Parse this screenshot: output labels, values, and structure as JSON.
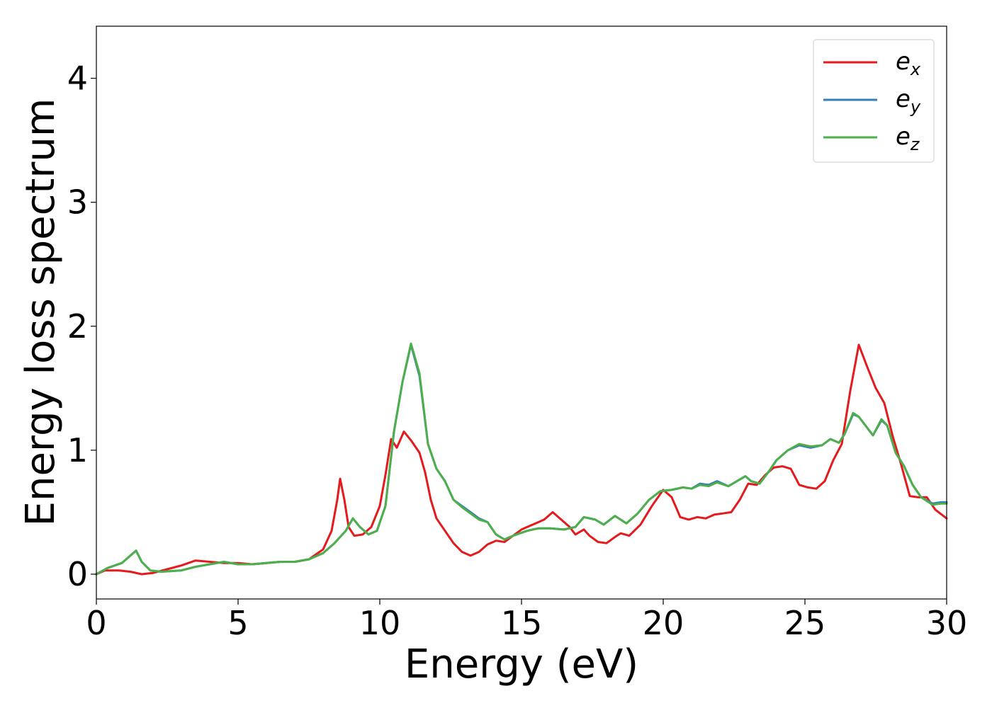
{
  "chart_data": {
    "type": "line",
    "xlabel": "Energy (eV)",
    "ylabel": "Energy loss spectrum",
    "xlim": [
      0,
      30
    ],
    "ylim": [
      -0.2,
      4.42
    ],
    "xticks": [
      "0",
      "5",
      "10",
      "15",
      "20",
      "25",
      "30"
    ],
    "yticks": [
      "0",
      "1",
      "2",
      "3",
      "4"
    ],
    "grid": false,
    "legend_position": "top-right",
    "series": [
      {
        "name": "e",
        "subscript": "x",
        "color": "#e41a1c",
        "points": [
          [
            0,
            0
          ],
          [
            0.3,
            0.03
          ],
          [
            0.8,
            0.03
          ],
          [
            1.2,
            0.02
          ],
          [
            1.6,
            0.0
          ],
          [
            2.0,
            0.01
          ],
          [
            2.5,
            0.04
          ],
          [
            3.0,
            0.07
          ],
          [
            3.5,
            0.11
          ],
          [
            4.0,
            0.1
          ],
          [
            4.5,
            0.09
          ],
          [
            5.0,
            0.09
          ],
          [
            5.5,
            0.08
          ],
          [
            6.0,
            0.09
          ],
          [
            6.5,
            0.1
          ],
          [
            7.0,
            0.1
          ],
          [
            7.5,
            0.12
          ],
          [
            8.0,
            0.2
          ],
          [
            8.3,
            0.35
          ],
          [
            8.5,
            0.6
          ],
          [
            8.6,
            0.77
          ],
          [
            8.75,
            0.6
          ],
          [
            8.9,
            0.38
          ],
          [
            9.1,
            0.31
          ],
          [
            9.4,
            0.32
          ],
          [
            9.7,
            0.38
          ],
          [
            10.0,
            0.55
          ],
          [
            10.2,
            0.8
          ],
          [
            10.4,
            1.09
          ],
          [
            10.6,
            1.02
          ],
          [
            10.85,
            1.15
          ],
          [
            11.1,
            1.08
          ],
          [
            11.4,
            0.98
          ],
          [
            11.6,
            0.82
          ],
          [
            11.8,
            0.6
          ],
          [
            12.0,
            0.45
          ],
          [
            12.3,
            0.35
          ],
          [
            12.6,
            0.25
          ],
          [
            12.9,
            0.18
          ],
          [
            13.2,
            0.15
          ],
          [
            13.5,
            0.18
          ],
          [
            13.8,
            0.24
          ],
          [
            14.1,
            0.27
          ],
          [
            14.4,
            0.26
          ],
          [
            14.7,
            0.31
          ],
          [
            15.0,
            0.36
          ],
          [
            15.4,
            0.4
          ],
          [
            15.8,
            0.44
          ],
          [
            16.1,
            0.5
          ],
          [
            16.4,
            0.44
          ],
          [
            16.7,
            0.38
          ],
          [
            16.9,
            0.32
          ],
          [
            17.2,
            0.36
          ],
          [
            17.4,
            0.31
          ],
          [
            17.7,
            0.26
          ],
          [
            18.0,
            0.25
          ],
          [
            18.3,
            0.3
          ],
          [
            18.5,
            0.33
          ],
          [
            18.8,
            0.31
          ],
          [
            19.2,
            0.4
          ],
          [
            19.6,
            0.55
          ],
          [
            20.0,
            0.68
          ],
          [
            20.3,
            0.62
          ],
          [
            20.6,
            0.46
          ],
          [
            20.9,
            0.44
          ],
          [
            21.2,
            0.46
          ],
          [
            21.5,
            0.45
          ],
          [
            21.8,
            0.48
          ],
          [
            22.1,
            0.49
          ],
          [
            22.4,
            0.5
          ],
          [
            22.7,
            0.6
          ],
          [
            23.0,
            0.73
          ],
          [
            23.3,
            0.72
          ],
          [
            23.6,
            0.8
          ],
          [
            23.9,
            0.86
          ],
          [
            24.2,
            0.87
          ],
          [
            24.5,
            0.85
          ],
          [
            24.8,
            0.72
          ],
          [
            25.1,
            0.7
          ],
          [
            25.4,
            0.69
          ],
          [
            25.7,
            0.75
          ],
          [
            26.0,
            0.92
          ],
          [
            26.3,
            1.05
          ],
          [
            26.6,
            1.48
          ],
          [
            26.9,
            1.85
          ],
          [
            27.2,
            1.67
          ],
          [
            27.5,
            1.5
          ],
          [
            27.8,
            1.38
          ],
          [
            28.1,
            1.11
          ],
          [
            28.4,
            0.88
          ],
          [
            28.7,
            0.63
          ],
          [
            29.0,
            0.62
          ],
          [
            29.3,
            0.62
          ],
          [
            29.6,
            0.52
          ],
          [
            30.0,
            0.45
          ]
        ]
      },
      {
        "name": "e",
        "subscript": "y",
        "color": "#377eb8",
        "points": [
          [
            0,
            0
          ],
          [
            0.4,
            0.05
          ],
          [
            0.9,
            0.09
          ],
          [
            1.2,
            0.15
          ],
          [
            1.4,
            0.19
          ],
          [
            1.6,
            0.1
          ],
          [
            1.9,
            0.03
          ],
          [
            2.3,
            0.02
          ],
          [
            3.0,
            0.03
          ],
          [
            3.5,
            0.06
          ],
          [
            4.0,
            0.08
          ],
          [
            4.5,
            0.1
          ],
          [
            5.0,
            0.08
          ],
          [
            5.5,
            0.08
          ],
          [
            6.0,
            0.09
          ],
          [
            6.5,
            0.1
          ],
          [
            7.0,
            0.1
          ],
          [
            7.5,
            0.12
          ],
          [
            8.0,
            0.17
          ],
          [
            8.4,
            0.25
          ],
          [
            8.8,
            0.35
          ],
          [
            9.05,
            0.45
          ],
          [
            9.3,
            0.38
          ],
          [
            9.6,
            0.32
          ],
          [
            9.9,
            0.35
          ],
          [
            10.2,
            0.55
          ],
          [
            10.5,
            1.15
          ],
          [
            10.8,
            1.55
          ],
          [
            11.1,
            1.85
          ],
          [
            11.4,
            1.6
          ],
          [
            11.7,
            1.05
          ],
          [
            12.0,
            0.85
          ],
          [
            12.3,
            0.75
          ],
          [
            12.6,
            0.6
          ],
          [
            12.9,
            0.55
          ],
          [
            13.2,
            0.5
          ],
          [
            13.5,
            0.45
          ],
          [
            13.8,
            0.42
          ],
          [
            14.1,
            0.32
          ],
          [
            14.4,
            0.28
          ],
          [
            14.7,
            0.31
          ],
          [
            15.2,
            0.35
          ],
          [
            15.6,
            0.37
          ],
          [
            16.0,
            0.37
          ],
          [
            16.5,
            0.36
          ],
          [
            16.9,
            0.38
          ],
          [
            17.2,
            0.46
          ],
          [
            17.6,
            0.44
          ],
          [
            17.9,
            0.4
          ],
          [
            18.3,
            0.47
          ],
          [
            18.7,
            0.41
          ],
          [
            19.1,
            0.49
          ],
          [
            19.5,
            0.6
          ],
          [
            19.9,
            0.67
          ],
          [
            20.3,
            0.68
          ],
          [
            20.7,
            0.7
          ],
          [
            21.0,
            0.69
          ],
          [
            21.3,
            0.73
          ],
          [
            21.6,
            0.72
          ],
          [
            21.9,
            0.75
          ],
          [
            22.3,
            0.71
          ],
          [
            22.6,
            0.75
          ],
          [
            22.9,
            0.79
          ],
          [
            23.1,
            0.75
          ],
          [
            23.4,
            0.73
          ],
          [
            23.7,
            0.82
          ],
          [
            24.0,
            0.92
          ],
          [
            24.4,
            1.0
          ],
          [
            24.8,
            1.04
          ],
          [
            25.2,
            1.02
          ],
          [
            25.6,
            1.04
          ],
          [
            25.9,
            1.09
          ],
          [
            26.2,
            1.06
          ],
          [
            26.4,
            1.13
          ],
          [
            26.7,
            1.29
          ],
          [
            26.9,
            1.27
          ],
          [
            27.2,
            1.18
          ],
          [
            27.4,
            1.12
          ],
          [
            27.7,
            1.24
          ],
          [
            27.9,
            1.2
          ],
          [
            28.2,
            0.98
          ],
          [
            28.5,
            0.87
          ],
          [
            28.8,
            0.72
          ],
          [
            29.1,
            0.62
          ],
          [
            29.5,
            0.57
          ],
          [
            29.8,
            0.58
          ],
          [
            30.0,
            0.58
          ]
        ]
      },
      {
        "name": "e",
        "subscript": "z",
        "color": "#4daf4a",
        "points": [
          [
            0,
            0
          ],
          [
            0.4,
            0.05
          ],
          [
            0.9,
            0.09
          ],
          [
            1.2,
            0.15
          ],
          [
            1.4,
            0.19
          ],
          [
            1.6,
            0.1
          ],
          [
            1.9,
            0.03
          ],
          [
            2.3,
            0.02
          ],
          [
            3.0,
            0.03
          ],
          [
            3.5,
            0.06
          ],
          [
            4.0,
            0.08
          ],
          [
            4.5,
            0.1
          ],
          [
            5.0,
            0.08
          ],
          [
            5.5,
            0.08
          ],
          [
            6.0,
            0.09
          ],
          [
            6.5,
            0.1
          ],
          [
            7.0,
            0.1
          ],
          [
            7.5,
            0.12
          ],
          [
            8.0,
            0.17
          ],
          [
            8.4,
            0.25
          ],
          [
            8.8,
            0.35
          ],
          [
            9.05,
            0.45
          ],
          [
            9.3,
            0.38
          ],
          [
            9.6,
            0.32
          ],
          [
            9.9,
            0.35
          ],
          [
            10.2,
            0.55
          ],
          [
            10.5,
            1.15
          ],
          [
            10.8,
            1.55
          ],
          [
            11.1,
            1.86
          ],
          [
            11.4,
            1.62
          ],
          [
            11.7,
            1.05
          ],
          [
            12.0,
            0.85
          ],
          [
            12.3,
            0.75
          ],
          [
            12.6,
            0.6
          ],
          [
            12.9,
            0.54
          ],
          [
            13.2,
            0.49
          ],
          [
            13.5,
            0.44
          ],
          [
            13.8,
            0.42
          ],
          [
            14.1,
            0.32
          ],
          [
            14.4,
            0.28
          ],
          [
            14.7,
            0.31
          ],
          [
            15.2,
            0.35
          ],
          [
            15.6,
            0.37
          ],
          [
            16.0,
            0.37
          ],
          [
            16.5,
            0.36
          ],
          [
            16.9,
            0.38
          ],
          [
            17.2,
            0.46
          ],
          [
            17.6,
            0.44
          ],
          [
            17.9,
            0.4
          ],
          [
            18.3,
            0.47
          ],
          [
            18.7,
            0.41
          ],
          [
            19.1,
            0.49
          ],
          [
            19.5,
            0.6
          ],
          [
            19.9,
            0.67
          ],
          [
            20.3,
            0.68
          ],
          [
            20.7,
            0.7
          ],
          [
            21.0,
            0.69
          ],
          [
            21.3,
            0.72
          ],
          [
            21.6,
            0.71
          ],
          [
            21.9,
            0.74
          ],
          [
            22.3,
            0.71
          ],
          [
            22.6,
            0.75
          ],
          [
            22.9,
            0.79
          ],
          [
            23.1,
            0.75
          ],
          [
            23.4,
            0.73
          ],
          [
            23.7,
            0.82
          ],
          [
            24.0,
            0.92
          ],
          [
            24.4,
            1.0
          ],
          [
            24.8,
            1.05
          ],
          [
            25.2,
            1.03
          ],
          [
            25.6,
            1.04
          ],
          [
            25.9,
            1.09
          ],
          [
            26.2,
            1.06
          ],
          [
            26.4,
            1.13
          ],
          [
            26.7,
            1.3
          ],
          [
            26.9,
            1.27
          ],
          [
            27.2,
            1.18
          ],
          [
            27.4,
            1.12
          ],
          [
            27.7,
            1.25
          ],
          [
            27.9,
            1.2
          ],
          [
            28.2,
            0.98
          ],
          [
            28.5,
            0.87
          ],
          [
            28.8,
            0.72
          ],
          [
            29.1,
            0.62
          ],
          [
            29.5,
            0.56
          ],
          [
            29.8,
            0.57
          ],
          [
            30.0,
            0.57
          ]
        ]
      }
    ]
  }
}
